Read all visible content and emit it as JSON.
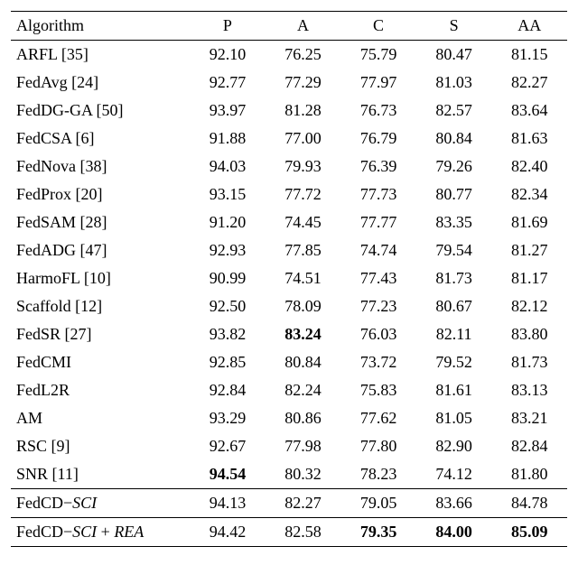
{
  "table": {
    "columns": [
      "Algorithm",
      "P",
      "A",
      "C",
      "S",
      "AA"
    ],
    "col_align": [
      "left",
      "center",
      "center",
      "center",
      "center",
      "center"
    ],
    "groups": [
      {
        "rows": [
          {
            "alg_html": "ARFL [35]",
            "vals": [
              "92.10",
              "76.25",
              "75.79",
              "80.47",
              "81.15"
            ],
            "bold": [
              false,
              false,
              false,
              false,
              false
            ]
          },
          {
            "alg_html": "FedAvg [24]",
            "vals": [
              "92.77",
              "77.29",
              "77.97",
              "81.03",
              "82.27"
            ],
            "bold": [
              false,
              false,
              false,
              false,
              false
            ]
          },
          {
            "alg_html": "FedDG-GA [50]",
            "vals": [
              "93.97",
              "81.28",
              "76.73",
              "82.57",
              "83.64"
            ],
            "bold": [
              false,
              false,
              false,
              false,
              false
            ]
          },
          {
            "alg_html": "FedCSA [6]",
            "vals": [
              "91.88",
              "77.00",
              "76.79",
              "80.84",
              "81.63"
            ],
            "bold": [
              false,
              false,
              false,
              false,
              false
            ]
          },
          {
            "alg_html": "FedNova [38]",
            "vals": [
              "94.03",
              "79.93",
              "76.39",
              "79.26",
              "82.40"
            ],
            "bold": [
              false,
              false,
              false,
              false,
              false
            ]
          },
          {
            "alg_html": "FedProx [20]",
            "vals": [
              "93.15",
              "77.72",
              "77.73",
              "80.77",
              "82.34"
            ],
            "bold": [
              false,
              false,
              false,
              false,
              false
            ]
          },
          {
            "alg_html": "FedSAM [28]",
            "vals": [
              "91.20",
              "74.45",
              "77.77",
              "83.35",
              "81.69"
            ],
            "bold": [
              false,
              false,
              false,
              false,
              false
            ]
          },
          {
            "alg_html": "FedADG [47]",
            "vals": [
              "92.93",
              "77.85",
              "74.74",
              "79.54",
              "81.27"
            ],
            "bold": [
              false,
              false,
              false,
              false,
              false
            ]
          },
          {
            "alg_html": "HarmoFL [10]",
            "vals": [
              "90.99",
              "74.51",
              "77.43",
              "81.73",
              "81.17"
            ],
            "bold": [
              false,
              false,
              false,
              false,
              false
            ]
          },
          {
            "alg_html": "Scaffold [12]",
            "vals": [
              "92.50",
              "78.09",
              "77.23",
              "80.67",
              "82.12"
            ],
            "bold": [
              false,
              false,
              false,
              false,
              false
            ]
          },
          {
            "alg_html": "FedSR [27]",
            "vals": [
              "93.82",
              "83.24",
              "76.03",
              "82.11",
              "83.80"
            ],
            "bold": [
              false,
              true,
              false,
              false,
              false
            ]
          },
          {
            "alg_html": "FedCMI",
            "vals": [
              "92.85",
              "80.84",
              "73.72",
              "79.52",
              "81.73"
            ],
            "bold": [
              false,
              false,
              false,
              false,
              false
            ]
          },
          {
            "alg_html": "FedL2R",
            "vals": [
              "92.84",
              "82.24",
              "75.83",
              "81.61",
              "83.13"
            ],
            "bold": [
              false,
              false,
              false,
              false,
              false
            ]
          },
          {
            "alg_html": "AM",
            "vals": [
              "93.29",
              "80.86",
              "77.62",
              "81.05",
              "83.21"
            ],
            "bold": [
              false,
              false,
              false,
              false,
              false
            ]
          },
          {
            "alg_html": "RSC [9]",
            "vals": [
              "92.67",
              "77.98",
              "77.80",
              "82.90",
              "82.84"
            ],
            "bold": [
              false,
              false,
              false,
              false,
              false
            ]
          },
          {
            "alg_html": "SNR [11]",
            "vals": [
              "94.54",
              "80.32",
              "78.23",
              "74.12",
              "81.80"
            ],
            "bold": [
              true,
              false,
              false,
              false,
              false
            ]
          }
        ]
      },
      {
        "rows": [
          {
            "alg_html": "FedCD−<span class=\"ital\">SCI</span>",
            "vals": [
              "94.13",
              "82.27",
              "79.05",
              "83.66",
              "84.78"
            ],
            "bold": [
              false,
              false,
              false,
              false,
              false
            ]
          }
        ]
      },
      {
        "rows": [
          {
            "alg_html": "FedCD−<span class=\"ital\">SCI</span> + <span class=\"ital\">REA</span>",
            "vals": [
              "94.42",
              "82.58",
              "79.35",
              "84.00",
              "85.09"
            ],
            "bold": [
              false,
              false,
              true,
              true,
              true
            ]
          }
        ]
      }
    ]
  }
}
